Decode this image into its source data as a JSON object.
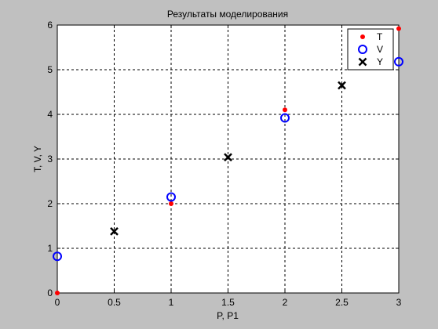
{
  "chart_data": {
    "type": "scatter",
    "title": "Результаты моделирования",
    "xlabel": "P, P1",
    "ylabel": "T, V, Y",
    "xlim": [
      0,
      3
    ],
    "ylim": [
      0,
      6
    ],
    "xticks": [
      0,
      0.5,
      1,
      1.5,
      2,
      2.5,
      3
    ],
    "xtick_labels": [
      "0",
      "0.5",
      "1",
      "1.5",
      "2",
      "2.5",
      "3"
    ],
    "yticks": [
      0,
      1,
      2,
      3,
      4,
      5,
      6
    ],
    "ytick_labels": [
      "0",
      "1",
      "2",
      "3",
      "4",
      "5",
      "6"
    ],
    "grid": true,
    "legend_position": "top-right",
    "series": [
      {
        "name": "T",
        "marker": "dot",
        "color": "#ff0000",
        "points": [
          [
            0,
            0
          ],
          [
            1,
            2
          ],
          [
            2,
            4.1
          ],
          [
            3,
            5.92
          ]
        ]
      },
      {
        "name": "V",
        "marker": "circle",
        "color": "#0000ff",
        "points": [
          [
            0,
            0.82
          ],
          [
            1,
            2.15
          ],
          [
            2,
            3.92
          ],
          [
            3,
            5.18
          ]
        ]
      },
      {
        "name": "Y",
        "marker": "x",
        "color": "#000000",
        "points": [
          [
            0.5,
            1.38
          ],
          [
            1.5,
            3.04
          ],
          [
            2.5,
            4.65
          ]
        ]
      }
    ]
  },
  "colors": {
    "figure_background": "#c0c0c0",
    "axes_background": "#ffffff",
    "grid": "#000000"
  }
}
